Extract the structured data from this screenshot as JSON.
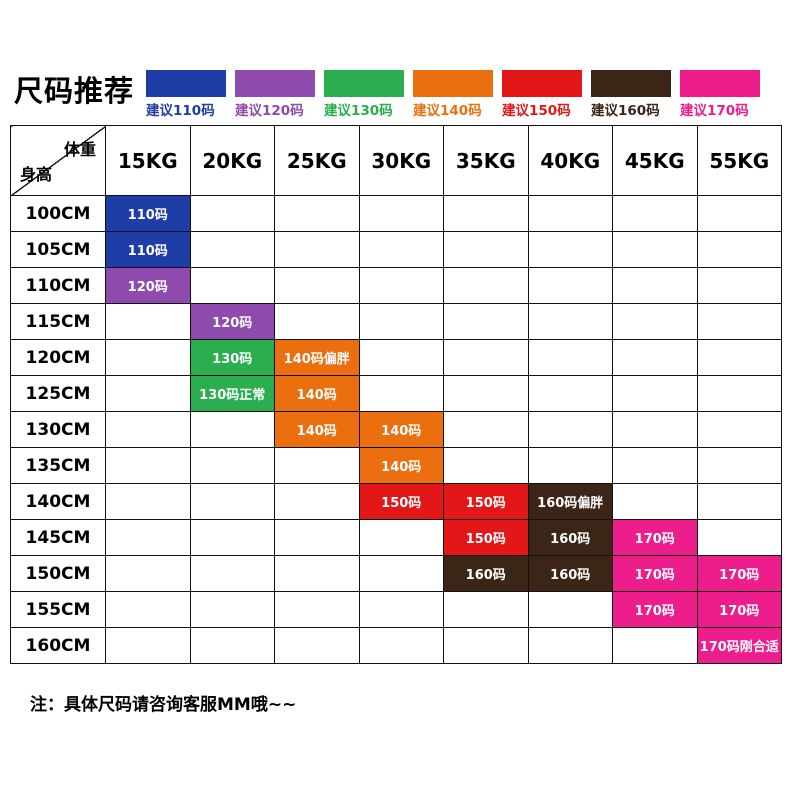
{
  "title": "尺码推荐",
  "colors": {
    "110": "#1e3da6",
    "120": "#8e4bad",
    "130": "#2bae4f",
    "140": "#eb6f0f",
    "150": "#e31717",
    "160": "#3b2517",
    "170": "#ed1e8c"
  },
  "legend": [
    {
      "label": "建议110码",
      "size": "110"
    },
    {
      "label": "建议120码",
      "size": "120"
    },
    {
      "label": "建议130码",
      "size": "130"
    },
    {
      "label": "建议140码",
      "size": "140"
    },
    {
      "label": "建议150码",
      "size": "150"
    },
    {
      "label": "建议160码",
      "size": "160"
    },
    {
      "label": "建议170码",
      "size": "170"
    }
  ],
  "chart_data": {
    "type": "table",
    "title": "尺码推荐",
    "corner_top_label": "体重",
    "corner_bottom_label": "身高",
    "columns": [
      "15KG",
      "20KG",
      "25KG",
      "30KG",
      "35KG",
      "40KG",
      "45KG",
      "55KG"
    ],
    "rows": [
      {
        "height": "100CM",
        "cells": [
          {
            "col": 0,
            "label": "110码",
            "size": "110"
          }
        ]
      },
      {
        "height": "105CM",
        "cells": [
          {
            "col": 0,
            "label": "110码",
            "size": "110"
          }
        ]
      },
      {
        "height": "110CM",
        "cells": [
          {
            "col": 0,
            "label": "120码",
            "size": "120"
          }
        ]
      },
      {
        "height": "115CM",
        "cells": [
          {
            "col": 1,
            "label": "120码",
            "size": "120"
          }
        ]
      },
      {
        "height": "120CM",
        "cells": [
          {
            "col": 1,
            "label": "130码",
            "size": "130"
          },
          {
            "col": 2,
            "label": "140码偏胖",
            "size": "140"
          }
        ]
      },
      {
        "height": "125CM",
        "cells": [
          {
            "col": 1,
            "label": "130码正常",
            "size": "130"
          },
          {
            "col": 2,
            "label": "140码",
            "size": "140"
          }
        ]
      },
      {
        "height": "130CM",
        "cells": [
          {
            "col": 2,
            "label": "140码",
            "size": "140"
          },
          {
            "col": 3,
            "label": "140码",
            "size": "140"
          }
        ]
      },
      {
        "height": "135CM",
        "cells": [
          {
            "col": 3,
            "label": "140码",
            "size": "140"
          }
        ]
      },
      {
        "height": "140CM",
        "cells": [
          {
            "col": 3,
            "label": "150码",
            "size": "150"
          },
          {
            "col": 4,
            "label": "150码",
            "size": "150"
          },
          {
            "col": 5,
            "label": "160码偏胖",
            "size": "160"
          }
        ]
      },
      {
        "height": "145CM",
        "cells": [
          {
            "col": 4,
            "label": "150码",
            "size": "150"
          },
          {
            "col": 5,
            "label": "160码",
            "size": "160"
          },
          {
            "col": 6,
            "label": "170码",
            "size": "170"
          }
        ]
      },
      {
        "height": "150CM",
        "cells": [
          {
            "col": 4,
            "label": "160码",
            "size": "160"
          },
          {
            "col": 5,
            "label": "160码",
            "size": "160"
          },
          {
            "col": 6,
            "label": "170码",
            "size": "170"
          },
          {
            "col": 7,
            "label": "170码",
            "size": "170"
          }
        ]
      },
      {
        "height": "155CM",
        "cells": [
          {
            "col": 6,
            "label": "170码",
            "size": "170"
          },
          {
            "col": 7,
            "label": "170码",
            "size": "170"
          }
        ]
      },
      {
        "height": "160CM",
        "cells": [
          {
            "col": 7,
            "label": "170码刚合适",
            "size": "170"
          }
        ]
      }
    ]
  },
  "note": "注：具体尺码请咨询客服MM哦~~"
}
